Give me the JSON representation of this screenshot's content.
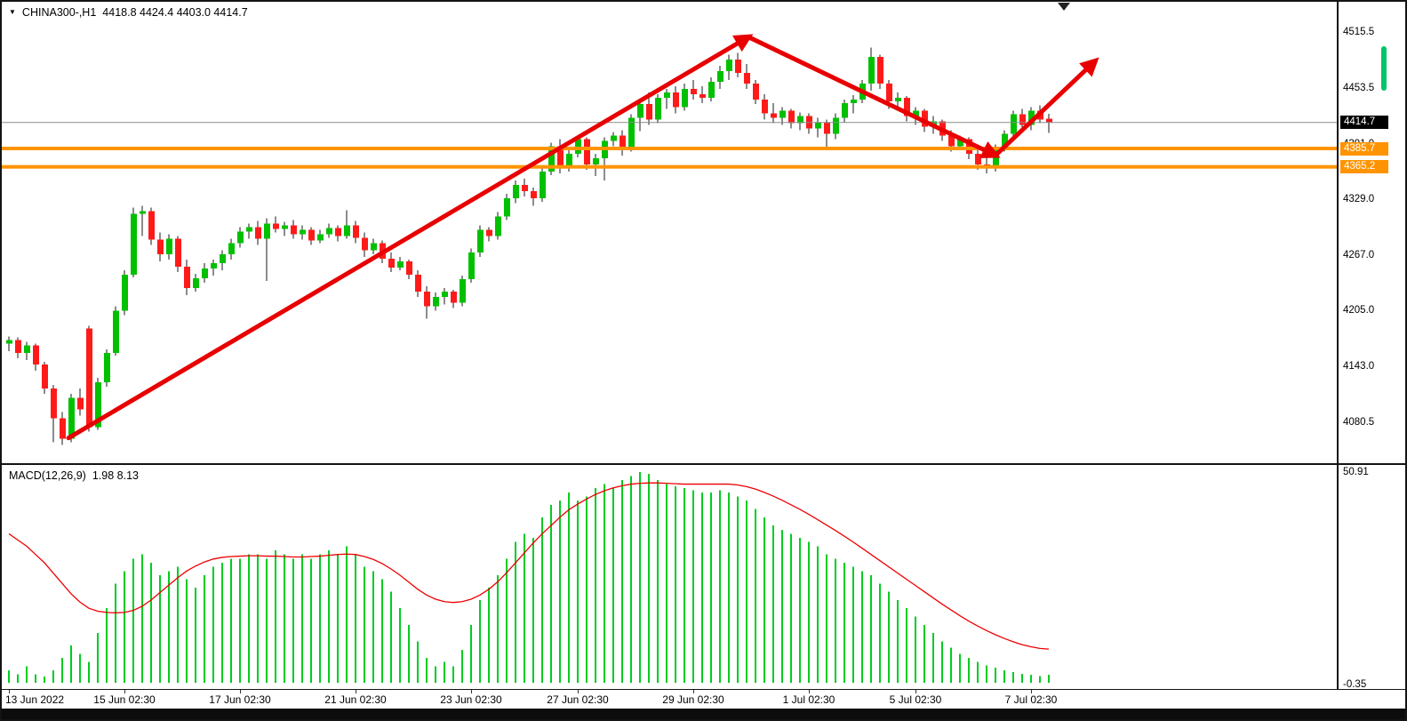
{
  "header": {
    "dropdown_icon": "▼",
    "symbol": "CHINA300-,H1",
    "ohlc": "4418.8 4424.4 4403.0 4414.7"
  },
  "macd_panel": {
    "label": "MACD(12,26,9)",
    "values": "1.98 8.13"
  },
  "colors": {
    "bull": "#00c000",
    "bear": "#ff1a1a",
    "wick": "#1a1a1a",
    "histogram": "#00cc22",
    "signal": "#ee0000",
    "hline": "#ff9400",
    "arrow": "#e80000",
    "bid_line": "#8a8a8a",
    "badge_current_bg": "#000000",
    "badge_text": "#ffffff",
    "scrollbar": "#00c46a",
    "frame": "#141414"
  },
  "chart_data": {
    "type": "candlestick_with_macd",
    "title": "CHINA300-,H1",
    "symbol": "CHINA300-",
    "timeframe": "H1",
    "price_range_visible": [
      4080.5,
      4515.5
    ],
    "price_axis_ticks": [
      4515.5,
      4453.5,
      4391.0,
      4329.0,
      4267.0,
      4205.0,
      4143.0,
      4080.5
    ],
    "macd_axis_ticks": [
      50.91,
      -0.35
    ],
    "current_price": 4414.7,
    "hlines": [
      4385.7,
      4365.2
    ],
    "time_labels": [
      {
        "text": "13 Jun 2022",
        "index": 0
      },
      {
        "text": "15 Jun 02:30",
        "index": 13
      },
      {
        "text": "17 Jun 02:30",
        "index": 26
      },
      {
        "text": "21 Jun 02:30",
        "index": 39
      },
      {
        "text": "23 Jun 02:30",
        "index": 52
      },
      {
        "text": "27 Jun 02:30",
        "index": 64
      },
      {
        "text": "29 Jun 02:30",
        "index": 77
      },
      {
        "text": "1 Jul 02:30",
        "index": 90
      },
      {
        "text": "5 Jul 02:30",
        "index": 102
      },
      {
        "text": "7 Jul 02:30",
        "index": 115
      }
    ],
    "candles_ohlc": [
      [
        4168,
        4176,
        4160,
        4172
      ],
      [
        4172,
        4175,
        4152,
        4158
      ],
      [
        4158,
        4170,
        4150,
        4166
      ],
      [
        4166,
        4168,
        4138,
        4145
      ],
      [
        4145,
        4148,
        4112,
        4118
      ],
      [
        4118,
        4122,
        4058,
        4085
      ],
      [
        4085,
        4092,
        4055,
        4062
      ],
      [
        4062,
        4112,
        4058,
        4108
      ],
      [
        4108,
        4118,
        4088,
        4095
      ],
      [
        4185,
        4188,
        4070,
        4075
      ],
      [
        4075,
        4130,
        4072,
        4125
      ],
      [
        4125,
        4162,
        4120,
        4158
      ],
      [
        4158,
        4210,
        4155,
        4205
      ],
      [
        4205,
        4250,
        4200,
        4245
      ],
      [
        4245,
        4320,
        4242,
        4313
      ],
      [
        4313,
        4322,
        4288,
        4316
      ],
      [
        4316,
        4320,
        4278,
        4284
      ],
      [
        4284,
        4292,
        4260,
        4268
      ],
      [
        4268,
        4290,
        4262,
        4285
      ],
      [
        4285,
        4288,
        4248,
        4254
      ],
      [
        4254,
        4262,
        4222,
        4230
      ],
      [
        4230,
        4246,
        4226,
        4241
      ],
      [
        4241,
        4258,
        4236,
        4252
      ],
      [
        4252,
        4262,
        4244,
        4258
      ],
      [
        4258,
        4272,
        4250,
        4268
      ],
      [
        4268,
        4285,
        4262,
        4280
      ],
      [
        4280,
        4298,
        4275,
        4293
      ],
      [
        4293,
        4302,
        4285,
        4298
      ],
      [
        4298,
        4305,
        4278,
        4285
      ],
      [
        4285,
        4308,
        4238,
        4302
      ],
      [
        4302,
        4310,
        4292,
        4296
      ],
      [
        4296,
        4304,
        4288,
        4300
      ],
      [
        4300,
        4306,
        4285,
        4290
      ],
      [
        4290,
        4300,
        4284,
        4295
      ],
      [
        4295,
        4298,
        4278,
        4283
      ],
      [
        4283,
        4295,
        4280,
        4290
      ],
      [
        4290,
        4302,
        4286,
        4297
      ],
      [
        4297,
        4300,
        4282,
        4288
      ],
      [
        4288,
        4317,
        4285,
        4300
      ],
      [
        4300,
        4305,
        4280,
        4286
      ],
      [
        4286,
        4292,
        4265,
        4272
      ],
      [
        4272,
        4285,
        4268,
        4280
      ],
      [
        4280,
        4283,
        4258,
        4263
      ],
      [
        4263,
        4270,
        4248,
        4253
      ],
      [
        4253,
        4265,
        4250,
        4260
      ],
      [
        4260,
        4262,
        4240,
        4245
      ],
      [
        4245,
        4250,
        4220,
        4226
      ],
      [
        4226,
        4232,
        4196,
        4210
      ],
      [
        4210,
        4225,
        4205,
        4220
      ],
      [
        4220,
        4230,
        4212,
        4226
      ],
      [
        4226,
        4228,
        4208,
        4214
      ],
      [
        4214,
        4244,
        4210,
        4240
      ],
      [
        4240,
        4274,
        4236,
        4270
      ],
      [
        4270,
        4300,
        4265,
        4295
      ],
      [
        4295,
        4298,
        4282,
        4288
      ],
      [
        4288,
        4315,
        4284,
        4310
      ],
      [
        4310,
        4335,
        4306,
        4330
      ],
      [
        4330,
        4350,
        4325,
        4345
      ],
      [
        4345,
        4352,
        4332,
        4338
      ],
      [
        4338,
        4342,
        4322,
        4330
      ],
      [
        4330,
        4365,
        4326,
        4360
      ],
      [
        4360,
        4392,
        4356,
        4388
      ],
      [
        4388,
        4396,
        4358,
        4364
      ],
      [
        4364,
        4386,
        4360,
        4380
      ],
      [
        4380,
        4400,
        4376,
        4396
      ],
      [
        4396,
        4398,
        4362,
        4368
      ],
      [
        4368,
        4380,
        4355,
        4375
      ],
      [
        4375,
        4398,
        4350,
        4394
      ],
      [
        4394,
        4404,
        4388,
        4400
      ],
      [
        4400,
        4406,
        4378,
        4386
      ],
      [
        4386,
        4424,
        4382,
        4420
      ],
      [
        4420,
        4440,
        4405,
        4435
      ],
      [
        4435,
        4448,
        4412,
        4418
      ],
      [
        4418,
        4446,
        4414,
        4442
      ],
      [
        4442,
        4452,
        4430,
        4448
      ],
      [
        4448,
        4455,
        4425,
        4432
      ],
      [
        4432,
        4458,
        4428,
        4452
      ],
      [
        4452,
        4462,
        4440,
        4446
      ],
      [
        4446,
        4455,
        4436,
        4442
      ],
      [
        4442,
        4465,
        4438,
        4460
      ],
      [
        4460,
        4478,
        4452,
        4472
      ],
      [
        4472,
        4490,
        4462,
        4485
      ],
      [
        4485,
        4492,
        4465,
        4470
      ],
      [
        4470,
        4480,
        4452,
        4458
      ],
      [
        4458,
        4462,
        4435,
        4440
      ],
      [
        4440,
        4446,
        4418,
        4425
      ],
      [
        4425,
        4436,
        4414,
        4420
      ],
      [
        4420,
        4432,
        4412,
        4428
      ],
      [
        4428,
        4430,
        4408,
        4414
      ],
      [
        4414,
        4426,
        4406,
        4422
      ],
      [
        4422,
        4425,
        4402,
        4408
      ],
      [
        4408,
        4420,
        4398,
        4415
      ],
      [
        4415,
        4418,
        4385,
        4402
      ],
      [
        4402,
        4425,
        4396,
        4420
      ],
      [
        4420,
        4440,
        4415,
        4436
      ],
      [
        4436,
        4445,
        4425,
        4440
      ],
      [
        4440,
        4462,
        4436,
        4458
      ],
      [
        4458,
        4498,
        4450,
        4488
      ],
      [
        4488,
        4490,
        4452,
        4458
      ],
      [
        4458,
        4462,
        4430,
        4438
      ],
      [
        4438,
        4448,
        4430,
        4442
      ],
      [
        4442,
        4444,
        4416,
        4422
      ],
      [
        4422,
        4432,
        4412,
        4428
      ],
      [
        4428,
        4430,
        4404,
        4410
      ],
      [
        4410,
        4422,
        4402,
        4416
      ],
      [
        4416,
        4418,
        4394,
        4400
      ],
      [
        4400,
        4406,
        4382,
        4388
      ],
      [
        4388,
        4400,
        4384,
        4396
      ],
      [
        4396,
        4398,
        4374,
        4380
      ],
      [
        4380,
        4384,
        4362,
        4368
      ],
      [
        4368,
        4376,
        4358,
        4364
      ],
      [
        4364,
        4390,
        4360,
        4386
      ],
      [
        4386,
        4406,
        4382,
        4402
      ],
      [
        4402,
        4428,
        4398,
        4424
      ],
      [
        4424,
        4430,
        4408,
        4412
      ],
      [
        4412,
        4432,
        4406,
        4428
      ],
      [
        4428,
        4434,
        4414,
        4418
      ],
      [
        4418.8,
        4424.4,
        4403.0,
        4414.7
      ]
    ],
    "macd": {
      "histogram": [
        3,
        2,
        4,
        2,
        1.5,
        3,
        6,
        9,
        7,
        5,
        12,
        18,
        24,
        27,
        30,
        31,
        29,
        26,
        27,
        28,
        25,
        23,
        26,
        28,
        29,
        30,
        30,
        31,
        31,
        30,
        32,
        31,
        30,
        31,
        30,
        31,
        32,
        31,
        33,
        31,
        28,
        27,
        25,
        22,
        18,
        14,
        10,
        6,
        4,
        5,
        4,
        8,
        14,
        20,
        23,
        26,
        30,
        34,
        36,
        35,
        40,
        43,
        44,
        46,
        44,
        45,
        47,
        48,
        47,
        49,
        50,
        50.9,
        50.5,
        49,
        48,
        47.5,
        47,
        46.5,
        46,
        46,
        46.5,
        46,
        45,
        44,
        42,
        40,
        38,
        37,
        36,
        35,
        34,
        33,
        31,
        30,
        29,
        28,
        27,
        26,
        24,
        22,
        20,
        18,
        16,
        14,
        12,
        10,
        8.5,
        7,
        6,
        5,
        4.2,
        3.6,
        3,
        2.6,
        2.2,
        1.9,
        1.6,
        1.98
      ],
      "signal": [
        36,
        34.5,
        33,
        31,
        29,
        26.5,
        24,
        21.5,
        19.5,
        18,
        17.3,
        17,
        16.9,
        17,
        17.5,
        18.5,
        20,
        21.8,
        23.6,
        25.4,
        27,
        28.2,
        29.2,
        29.9,
        30.3,
        30.5,
        30.6,
        30.7,
        30.7,
        30.6,
        30.6,
        30.5,
        30.4,
        30.4,
        30.5,
        30.6,
        30.8,
        31,
        31.1,
        31,
        30.5,
        29.8,
        28.8,
        27.5,
        26,
        24.3,
        22.6,
        21.2,
        20.2,
        19.6,
        19.4,
        19.6,
        20.2,
        21.2,
        22.6,
        24.4,
        26.6,
        29,
        31.4,
        33.8,
        36,
        38,
        40,
        41.8,
        43.2,
        44.4,
        45.5,
        46.4,
        47.1,
        47.6,
        48,
        48.2,
        48.3,
        48.3,
        48.2,
        48.1,
        48,
        48,
        48,
        48,
        48,
        48,
        47.8,
        47.4,
        46.8,
        46,
        45.1,
        44.1,
        43,
        41.9,
        40.7,
        39.4,
        38.1,
        36.8,
        35.4,
        34,
        32.5,
        31,
        29.5,
        28,
        26.5,
        25,
        23.5,
        22,
        20.5,
        19,
        17.6,
        16.2,
        14.9,
        13.7,
        12.6,
        11.6,
        10.7,
        9.9,
        9.2,
        8.7,
        8.3,
        8.13
      ]
    },
    "trend_arrows": [
      {
        "from_index": 6.7,
        "from_price": 4063,
        "to_index": 83.2,
        "to_price": 4510
      },
      {
        "from_index": 83.2,
        "from_price": 4510,
        "to_index": 111.0,
        "to_price": 4378
      },
      {
        "from_index": 111.0,
        "from_price": 4378,
        "to_index": 122.2,
        "to_price": 4483
      }
    ]
  }
}
